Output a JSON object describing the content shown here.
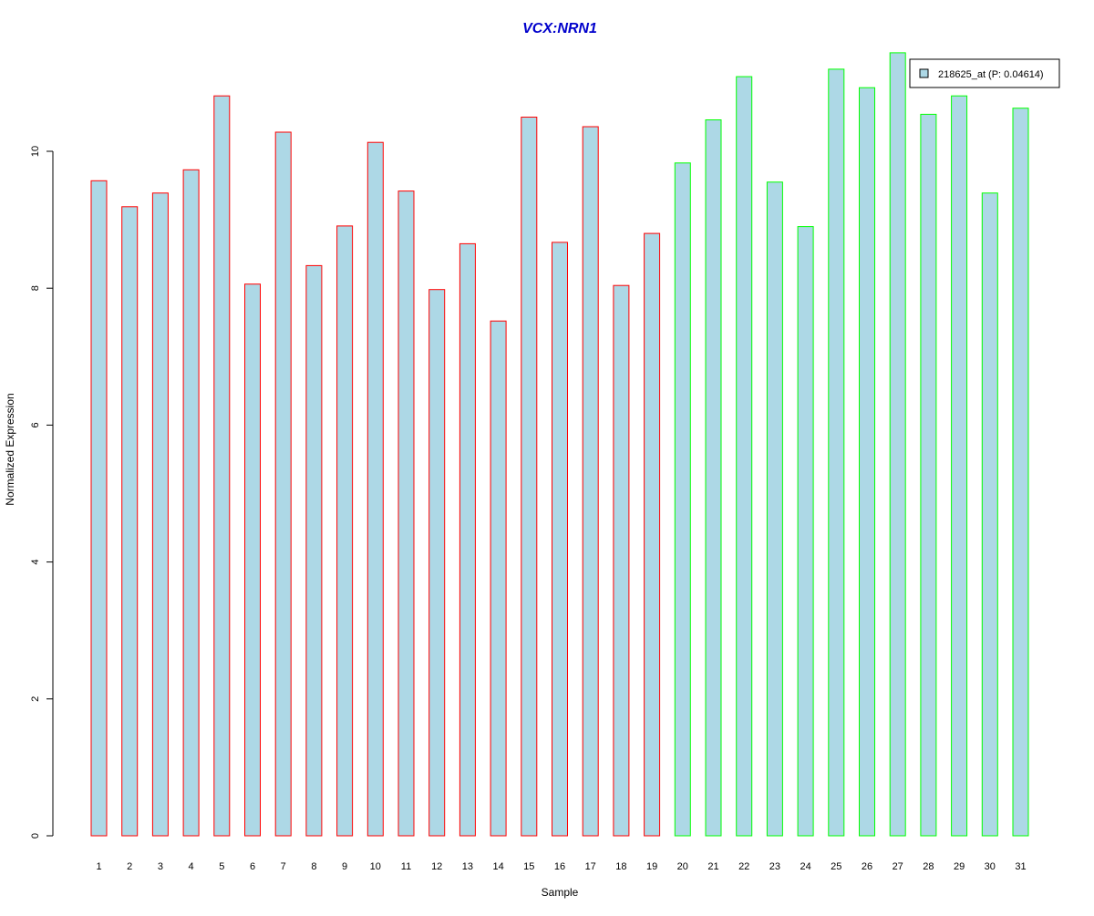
{
  "chart_data": {
    "type": "bar",
    "title": "VCX:NRN1",
    "xlabel": "Sample",
    "ylabel": "Normalized Expression",
    "ylim": [
      0,
      11.5
    ],
    "yticks": [
      "0",
      "2",
      "4",
      "6",
      "8",
      "10"
    ],
    "categories": [
      "1",
      "2",
      "3",
      "4",
      "5",
      "6",
      "7",
      "8",
      "9",
      "10",
      "11",
      "12",
      "13",
      "14",
      "15",
      "16",
      "17",
      "18",
      "19",
      "20",
      "21",
      "22",
      "23",
      "24",
      "25",
      "26",
      "27",
      "28",
      "29",
      "30",
      "31"
    ],
    "series": [
      {
        "name": "218625_at (P: 0.04614)",
        "values": [
          9.57,
          9.19,
          9.39,
          9.73,
          10.81,
          8.06,
          10.28,
          8.33,
          8.91,
          10.13,
          9.42,
          7.98,
          8.65,
          7.52,
          10.5,
          8.67,
          10.36,
          8.04,
          8.8,
          9.83,
          10.46,
          11.09,
          9.55,
          8.9,
          11.2,
          10.93,
          11.44,
          10.54,
          10.81,
          9.39,
          10.63
        ]
      }
    ],
    "legend": {
      "label": "218625_at (P: 0.04614)",
      "position": "top-right"
    },
    "group_outline_colors": [
      "#ff0000",
      "#ff0000",
      "#ff0000",
      "#ff0000",
      "#ff0000",
      "#ff0000",
      "#ff0000",
      "#ff0000",
      "#ff0000",
      "#ff0000",
      "#ff0000",
      "#ff0000",
      "#ff0000",
      "#ff0000",
      "#ff0000",
      "#ff0000",
      "#ff0000",
      "#ff0000",
      "#ff0000",
      "#00ff00",
      "#00ff00",
      "#00ff00",
      "#00ff00",
      "#00ff00",
      "#00ff00",
      "#00ff00",
      "#00ff00",
      "#00ff00",
      "#00ff00",
      "#00ff00",
      "#00ff00"
    ],
    "bar_fill_color": "#add8e6",
    "title_color": "#0000cc",
    "grid": false
  }
}
